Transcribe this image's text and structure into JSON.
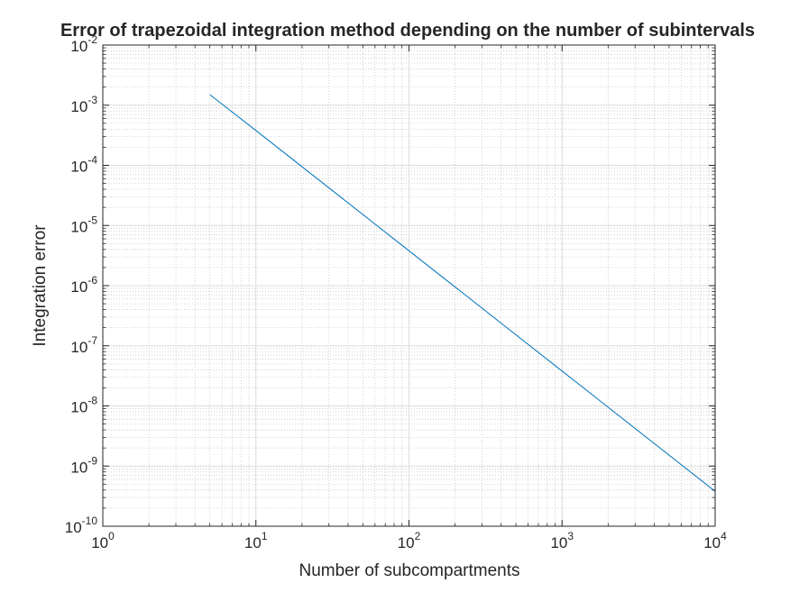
{
  "chart_data": {
    "type": "line",
    "title": "Error of trapezoidal integration method depending on the number of subintervals",
    "xlabel": "Number of subcompartments",
    "ylabel": "Integration error",
    "xscale": "log",
    "yscale": "log",
    "xlim": [
      1,
      10000
    ],
    "ylim": [
      1e-10,
      0.01
    ],
    "x_ticks": [
      {
        "base": "10",
        "exp": "0"
      },
      {
        "base": "10",
        "exp": "1"
      },
      {
        "base": "10",
        "exp": "2"
      },
      {
        "base": "10",
        "exp": "3"
      },
      {
        "base": "10",
        "exp": "4"
      }
    ],
    "y_ticks": [
      {
        "base": "10",
        "exp": "-10"
      },
      {
        "base": "10",
        "exp": "-9"
      },
      {
        "base": "10",
        "exp": "-8"
      },
      {
        "base": "10",
        "exp": "-7"
      },
      {
        "base": "10",
        "exp": "-6"
      },
      {
        "base": "10",
        "exp": "-5"
      },
      {
        "base": "10",
        "exp": "-4"
      },
      {
        "base": "10",
        "exp": "-3"
      },
      {
        "base": "10",
        "exp": "-2"
      }
    ],
    "grid": true,
    "minor_grid": true,
    "series": [
      {
        "color": "#0072BD",
        "x": [
          5,
          10,
          100,
          1000,
          10000
        ],
        "y": [
          0.0015,
          0.00038,
          3.8e-06,
          3.8e-08,
          3.8e-10
        ]
      }
    ]
  }
}
